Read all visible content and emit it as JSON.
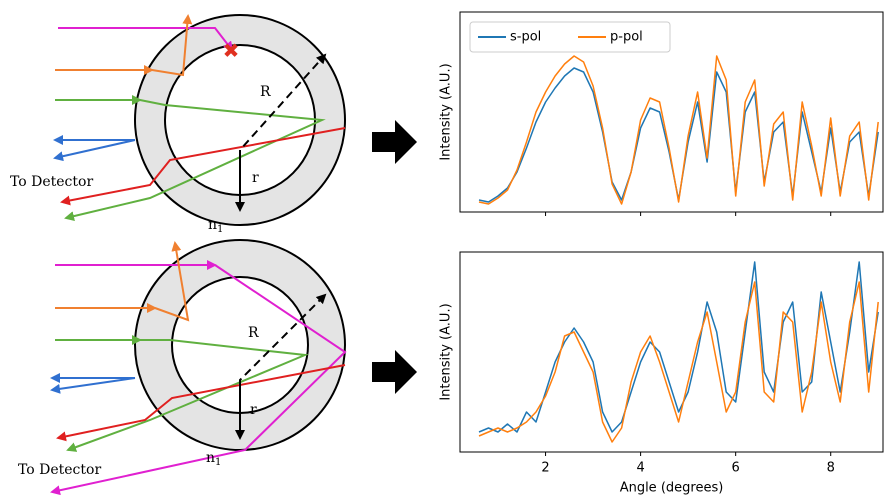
{
  "diagrams": [
    {
      "detector": "To Detector",
      "big_radius": "R",
      "small_radius": "r",
      "index": "n",
      "index_sub": "1"
    },
    {
      "detector": "To Detector",
      "big_radius": "R",
      "small_radius": "r",
      "index": "n",
      "index_sub": "1"
    }
  ],
  "chart_data": [
    {
      "type": "line",
      "y_label": "Intensity (A.U.)",
      "legend": "upper left",
      "show_xtick_labels": false,
      "xlim": [
        0.2,
        9.1
      ],
      "ylim": [
        0,
        1
      ],
      "xticks": [
        2,
        4,
        6,
        8
      ],
      "yticks": [],
      "x": [
        0.6,
        0.8,
        1.0,
        1.2,
        1.4,
        1.6,
        1.8,
        2.0,
        2.2,
        2.4,
        2.6,
        2.8,
        3.0,
        3.2,
        3.4,
        3.6,
        3.8,
        4.0,
        4.2,
        4.4,
        4.6,
        4.8,
        5.0,
        5.2,
        5.4,
        5.6,
        5.8,
        6.0,
        6.2,
        6.4,
        6.6,
        6.8,
        7.0,
        7.2,
        7.4,
        7.6,
        7.8,
        8.0,
        8.2,
        8.4,
        8.6,
        8.8,
        9.0
      ],
      "series": [
        {
          "name": "s-pol",
          "color": "#1f77b4",
          "values": [
            0.06,
            0.05,
            0.08,
            0.12,
            0.2,
            0.32,
            0.45,
            0.55,
            0.62,
            0.68,
            0.72,
            0.7,
            0.6,
            0.4,
            0.15,
            0.06,
            0.2,
            0.42,
            0.52,
            0.5,
            0.3,
            0.06,
            0.35,
            0.55,
            0.25,
            0.7,
            0.6,
            0.1,
            0.5,
            0.6,
            0.15,
            0.4,
            0.45,
            0.08,
            0.5,
            0.3,
            0.1,
            0.42,
            0.1,
            0.35,
            0.4,
            0.08,
            0.4
          ]
        },
        {
          "name": "p-pol",
          "color": "#ff7f0e",
          "values": [
            0.05,
            0.04,
            0.07,
            0.11,
            0.21,
            0.35,
            0.5,
            0.6,
            0.68,
            0.74,
            0.78,
            0.75,
            0.63,
            0.42,
            0.14,
            0.04,
            0.2,
            0.46,
            0.57,
            0.55,
            0.32,
            0.05,
            0.38,
            0.6,
            0.27,
            0.78,
            0.66,
            0.08,
            0.55,
            0.66,
            0.13,
            0.44,
            0.5,
            0.06,
            0.55,
            0.33,
            0.08,
            0.47,
            0.08,
            0.38,
            0.45,
            0.06,
            0.45
          ]
        }
      ]
    },
    {
      "type": "line",
      "y_label": "Intensity (A.U.)",
      "x_label": "Angle (degrees)",
      "show_xtick_labels": true,
      "xlim": [
        0.2,
        9.1
      ],
      "ylim": [
        0,
        1
      ],
      "xticks": [
        2,
        4,
        6,
        8
      ],
      "yticks": [],
      "x": [
        0.6,
        0.8,
        1.0,
        1.2,
        1.4,
        1.6,
        1.8,
        2.0,
        2.2,
        2.4,
        2.6,
        2.8,
        3.0,
        3.2,
        3.4,
        3.6,
        3.8,
        4.0,
        4.2,
        4.4,
        4.6,
        4.8,
        5.0,
        5.2,
        5.4,
        5.6,
        5.8,
        6.0,
        6.2,
        6.4,
        6.6,
        6.8,
        7.0,
        7.2,
        7.4,
        7.6,
        7.8,
        8.0,
        8.2,
        8.4,
        8.6,
        8.8,
        9.0
      ],
      "series": [
        {
          "name": "s-pol",
          "color": "#1f77b4",
          "values": [
            0.1,
            0.12,
            0.1,
            0.14,
            0.1,
            0.2,
            0.15,
            0.3,
            0.45,
            0.55,
            0.62,
            0.55,
            0.45,
            0.2,
            0.1,
            0.15,
            0.3,
            0.45,
            0.55,
            0.5,
            0.35,
            0.2,
            0.3,
            0.5,
            0.75,
            0.6,
            0.3,
            0.25,
            0.6,
            0.95,
            0.4,
            0.3,
            0.65,
            0.75,
            0.3,
            0.35,
            0.8,
            0.55,
            0.3,
            0.6,
            0.95,
            0.4,
            0.7
          ]
        },
        {
          "name": "p-pol",
          "color": "#ff7f0e",
          "values": [
            0.08,
            0.1,
            0.12,
            0.1,
            0.12,
            0.15,
            0.2,
            0.28,
            0.4,
            0.58,
            0.6,
            0.5,
            0.4,
            0.15,
            0.05,
            0.12,
            0.35,
            0.5,
            0.58,
            0.45,
            0.3,
            0.15,
            0.35,
            0.55,
            0.7,
            0.45,
            0.2,
            0.3,
            0.65,
            0.85,
            0.3,
            0.25,
            0.7,
            0.65,
            0.2,
            0.4,
            0.75,
            0.45,
            0.25,
            0.65,
            0.85,
            0.3,
            0.75
          ]
        }
      ]
    }
  ]
}
